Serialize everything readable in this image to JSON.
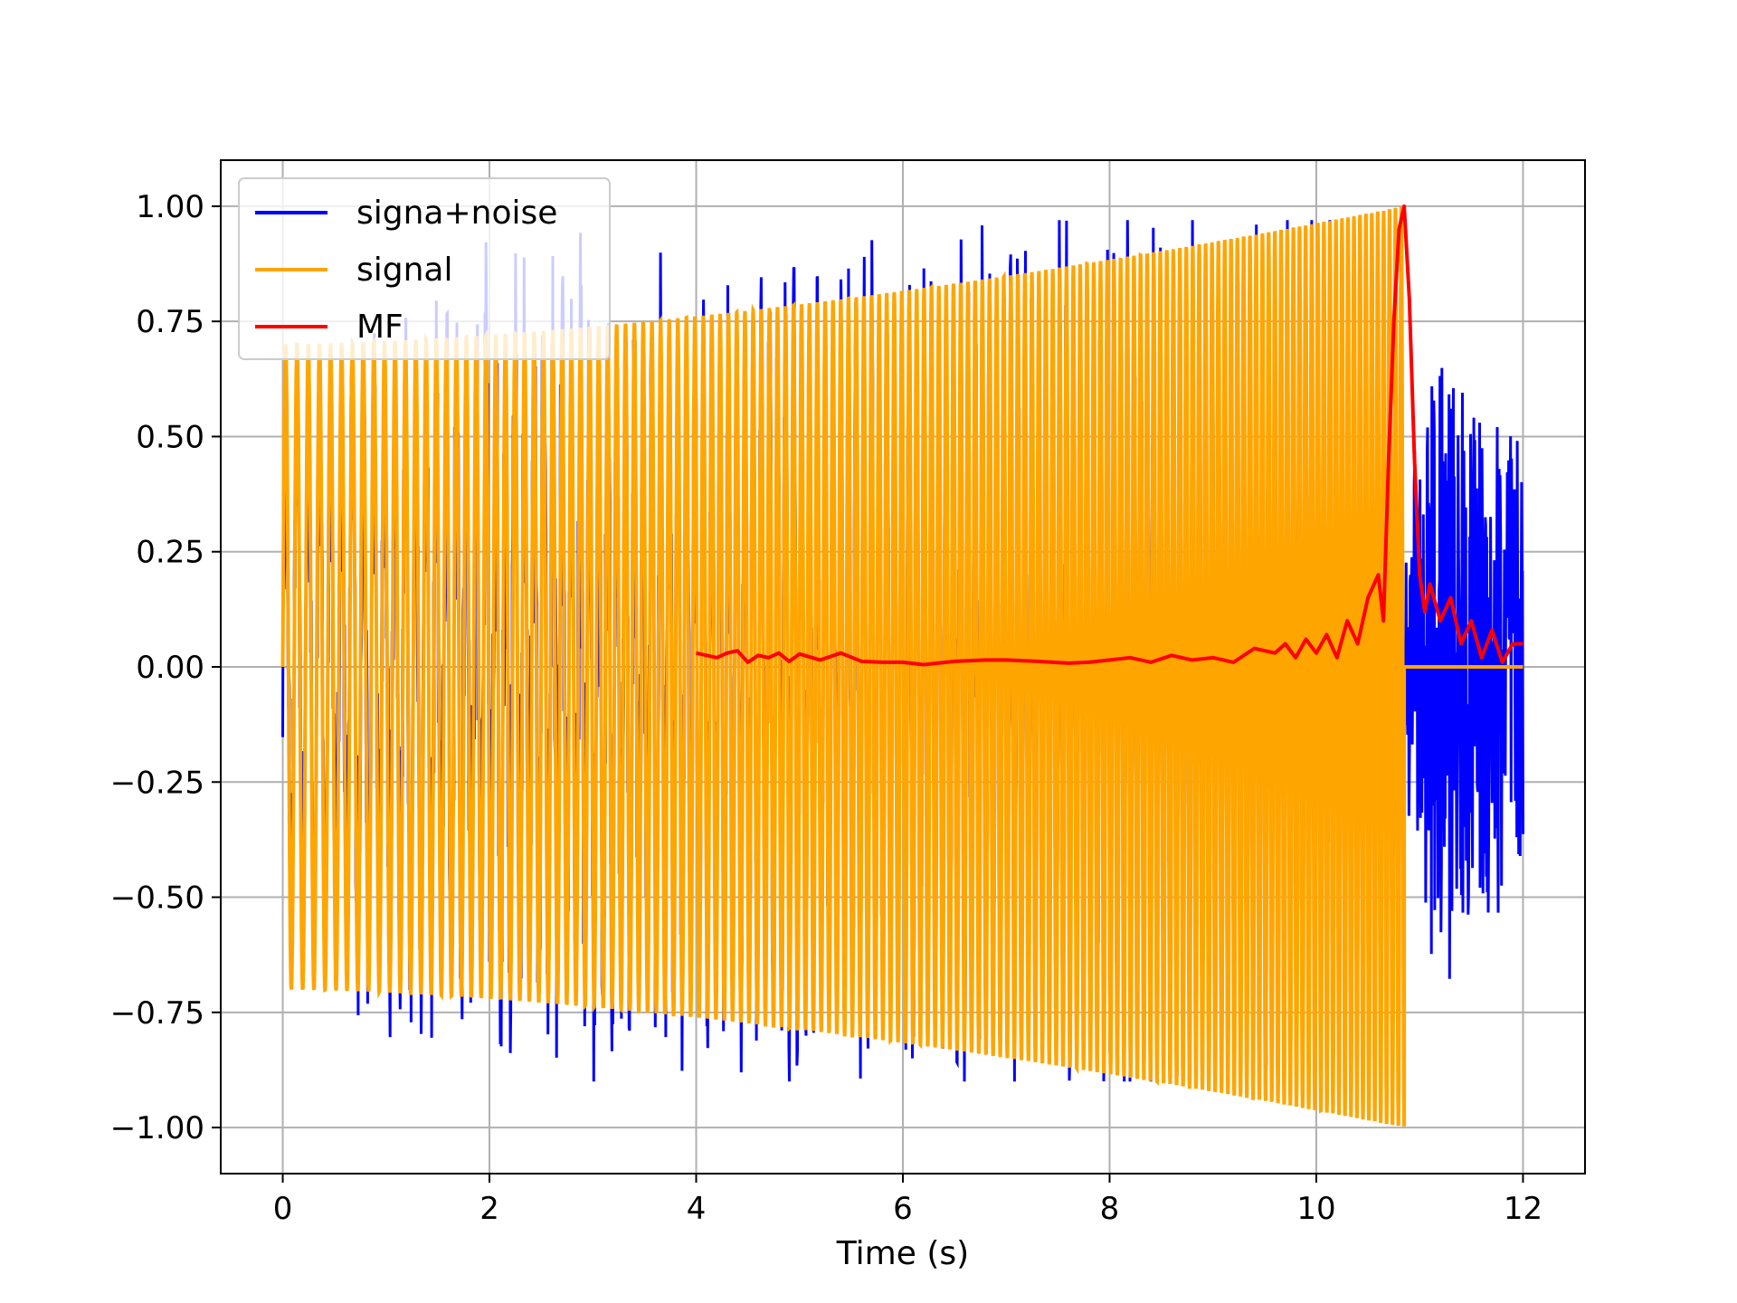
{
  "chart_data": {
    "type": "line",
    "title": "",
    "xlabel": "Time (s)",
    "ylabel": "",
    "xlim": [
      -0.6,
      12.6
    ],
    "ylim": [
      -1.1,
      1.1
    ],
    "xticks": [
      0,
      2,
      4,
      6,
      8,
      10,
      12
    ],
    "xtick_labels": [
      "0",
      "2",
      "4",
      "6",
      "8",
      "10",
      "12"
    ],
    "yticks": [
      1.0,
      0.75,
      0.5,
      0.25,
      0.0,
      -0.25,
      -0.5,
      -0.75,
      -1.0
    ],
    "ytick_labels": [
      "1.00",
      "0.75",
      "0.50",
      "0.25",
      "0.00",
      "−0.25",
      "−0.50",
      "−0.75",
      "−1.00"
    ],
    "grid": true,
    "legend_position": "top-left",
    "series": [
      {
        "name": "signa+noise",
        "color": "#0000ff",
        "description_points": {
          "x": [
            0.0,
            0.3,
            0.9,
            1.2,
            2.0,
            2.3,
            3.0,
            3.3,
            4.0,
            6.0,
            8.0,
            10.0,
            10.85,
            11.0,
            11.3,
            11.5,
            11.8,
            12.0
          ],
          "envelope": [
            0.42,
            0.55,
            0.72,
            0.62,
            0.97,
            0.9,
            0.97,
            0.85,
            0.75,
            0.8,
            0.87,
            0.95,
            0.2,
            0.6,
            0.68,
            0.55,
            0.6,
            0.45
          ]
        }
      },
      {
        "name": "signal",
        "color": "#ffa500",
        "chirp": {
          "t_start": 0.0,
          "t_end": 10.85,
          "amp_start": 0.7,
          "amp_end": 1.0,
          "after_end_value": 0.0,
          "x_end": 12.0
        }
      },
      {
        "name": "MF",
        "color": "#ff0000",
        "x": [
          4.0,
          4.1,
          4.2,
          4.3,
          4.4,
          4.5,
          4.6,
          4.7,
          4.8,
          4.9,
          5.0,
          5.2,
          5.4,
          5.6,
          5.8,
          6.0,
          6.2,
          6.5,
          6.8,
          7.0,
          7.3,
          7.6,
          7.8,
          8.0,
          8.2,
          8.4,
          8.6,
          8.8,
          9.0,
          9.2,
          9.4,
          9.6,
          9.7,
          9.8,
          9.9,
          10.0,
          10.1,
          10.2,
          10.3,
          10.4,
          10.5,
          10.6,
          10.65,
          10.7,
          10.75,
          10.8,
          10.85,
          10.9,
          10.95,
          11.0,
          11.05,
          11.1,
          11.2,
          11.3,
          11.4,
          11.5,
          11.6,
          11.7,
          11.8,
          11.9,
          12.0
        ],
        "y": [
          0.03,
          0.025,
          0.02,
          0.03,
          0.035,
          0.01,
          0.025,
          0.02,
          0.03,
          0.012,
          0.028,
          0.015,
          0.03,
          0.012,
          0.01,
          0.01,
          0.005,
          0.012,
          0.015,
          0.015,
          0.012,
          0.008,
          0.01,
          0.015,
          0.02,
          0.01,
          0.025,
          0.015,
          0.02,
          0.01,
          0.04,
          0.03,
          0.05,
          0.02,
          0.06,
          0.03,
          0.07,
          0.02,
          0.1,
          0.05,
          0.15,
          0.2,
          0.1,
          0.45,
          0.75,
          0.95,
          1.0,
          0.8,
          0.45,
          0.2,
          0.12,
          0.18,
          0.1,
          0.15,
          0.05,
          0.1,
          0.02,
          0.08,
          0.01,
          0.05,
          0.05
        ]
      }
    ]
  }
}
